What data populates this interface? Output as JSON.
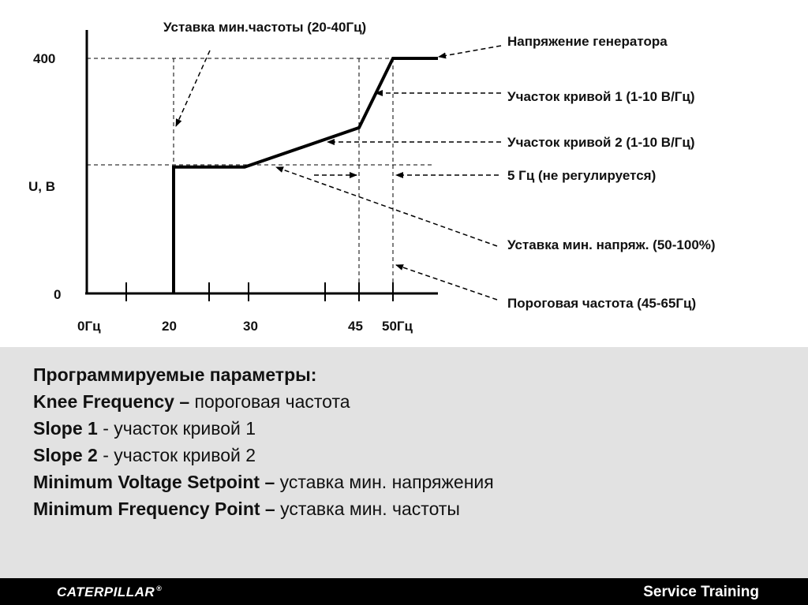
{
  "diagram": {
    "labels": {
      "min_freq_setpoint": "Уставка мин.частоты (20-40Гц)",
      "generator_voltage": "Напряжение генератора",
      "slope1": "Участок кривой 1 (1-10 В/Гц)",
      "slope2": "Участок кривой 2 (1-10 В/Гц)",
      "five_hz": "5 Гц (не регулируется)",
      "min_voltage_setpoint": "Уставка мин. напряж. (50-100%)",
      "knee_frequency": "Пороговая частота (45-65Гц)"
    },
    "y_axis": {
      "label": "U, В",
      "ticks": [
        "400",
        "0"
      ]
    },
    "x_axis": {
      "ticks": [
        "0Гц",
        "20",
        "30",
        "45",
        "50Гц"
      ]
    },
    "curve": [
      {
        "f": 20,
        "u": 0
      },
      {
        "f": 20,
        "u": 215
      },
      {
        "f": 30,
        "u": 215
      },
      {
        "f": 45,
        "u": 282
      },
      {
        "f": 50,
        "u": 400
      },
      {
        "f": 55,
        "u": 400
      }
    ],
    "x_range": [
      0,
      55
    ],
    "y_range": [
      0,
      400
    ]
  },
  "info": {
    "heading": "Программируемые параметры:",
    "params": [
      {
        "term": "Knee Frequency",
        "separator": " – ",
        "desc": "пороговая частота"
      },
      {
        "term": "Slope 1",
        "separator": " - ",
        "desc": "участок кривой 1"
      },
      {
        "term": "Slope 2",
        "separator": " - ",
        "desc": "участок кривой 2"
      },
      {
        "term": "Minimum Voltage Setpoint",
        "separator": " – ",
        "desc": "уставка мин. напряжения"
      },
      {
        "term": "Minimum Frequency Point",
        "separator": " – ",
        "desc": "уставка мин. частоты"
      }
    ]
  },
  "footer": {
    "brand": "CATERPILLAR",
    "brand_mark": "®",
    "service": "Service Training"
  },
  "colors": {
    "panel_bg": "#e2e2e2",
    "footer_bg": "#000000",
    "line": "#000000"
  }
}
